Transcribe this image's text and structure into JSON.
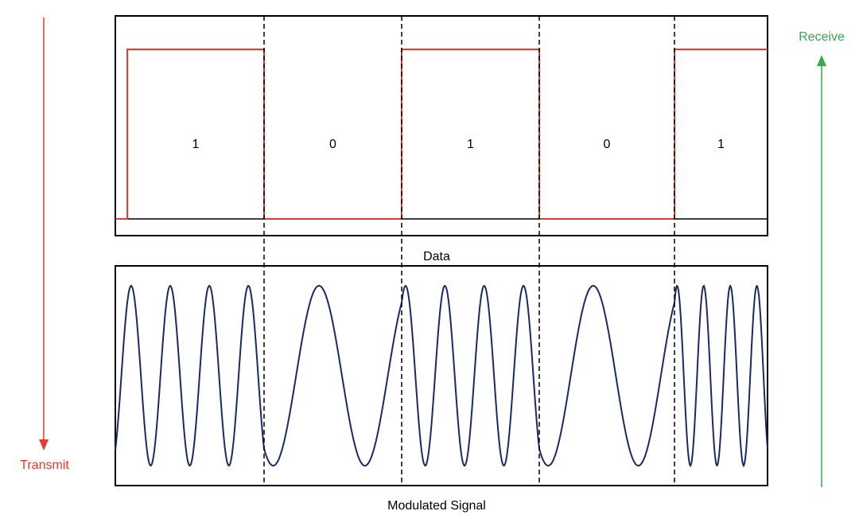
{
  "labels": {
    "transmit": "Transmit",
    "receive": "Receive",
    "data_panel": "Data",
    "signal_panel": "Modulated Signal"
  },
  "bits": [
    "1",
    "0",
    "1",
    "0",
    "1"
  ],
  "modulation": {
    "cycles_per_bit": {
      "1": 3.5,
      "0": 1.5
    }
  },
  "colors": {
    "transmit": "#e8392e",
    "receive": "#3aa84f",
    "data_line": "#e8392e",
    "signal_line": "#1a2a66",
    "frame": "#000000",
    "divider": "#000000"
  }
}
